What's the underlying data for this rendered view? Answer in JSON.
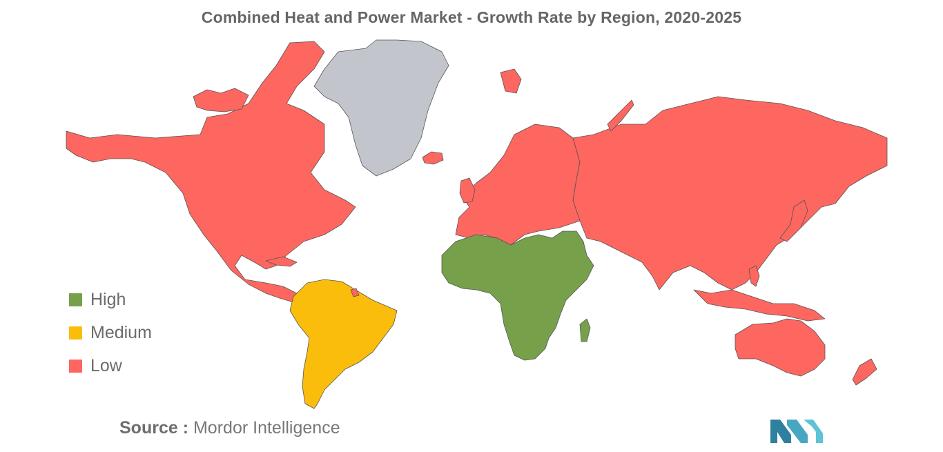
{
  "title": "Combined Heat and Power Market - Growth Rate by Region, 2020-2025",
  "legend": [
    {
      "label": "High",
      "color": "#76a04a"
    },
    {
      "label": "Medium",
      "color": "#fbbd0b"
    },
    {
      "label": "Low",
      "color": "#fe6660"
    }
  ],
  "source": {
    "label": "Source :",
    "text": "Mordor Intelligence"
  },
  "colors": {
    "no_data": "#c2c5cb",
    "border": "#555555",
    "logo": "#47a7c3"
  },
  "regions": [
    {
      "name": "North America",
      "level": "Low"
    },
    {
      "name": "South America",
      "level": "Medium"
    },
    {
      "name": "Europe",
      "level": "Low"
    },
    {
      "name": "Middle East and Africa",
      "level": "High"
    },
    {
      "name": "Asia-Pacific",
      "level": "Low"
    },
    {
      "name": "Greenland",
      "level": "No data"
    }
  ]
}
